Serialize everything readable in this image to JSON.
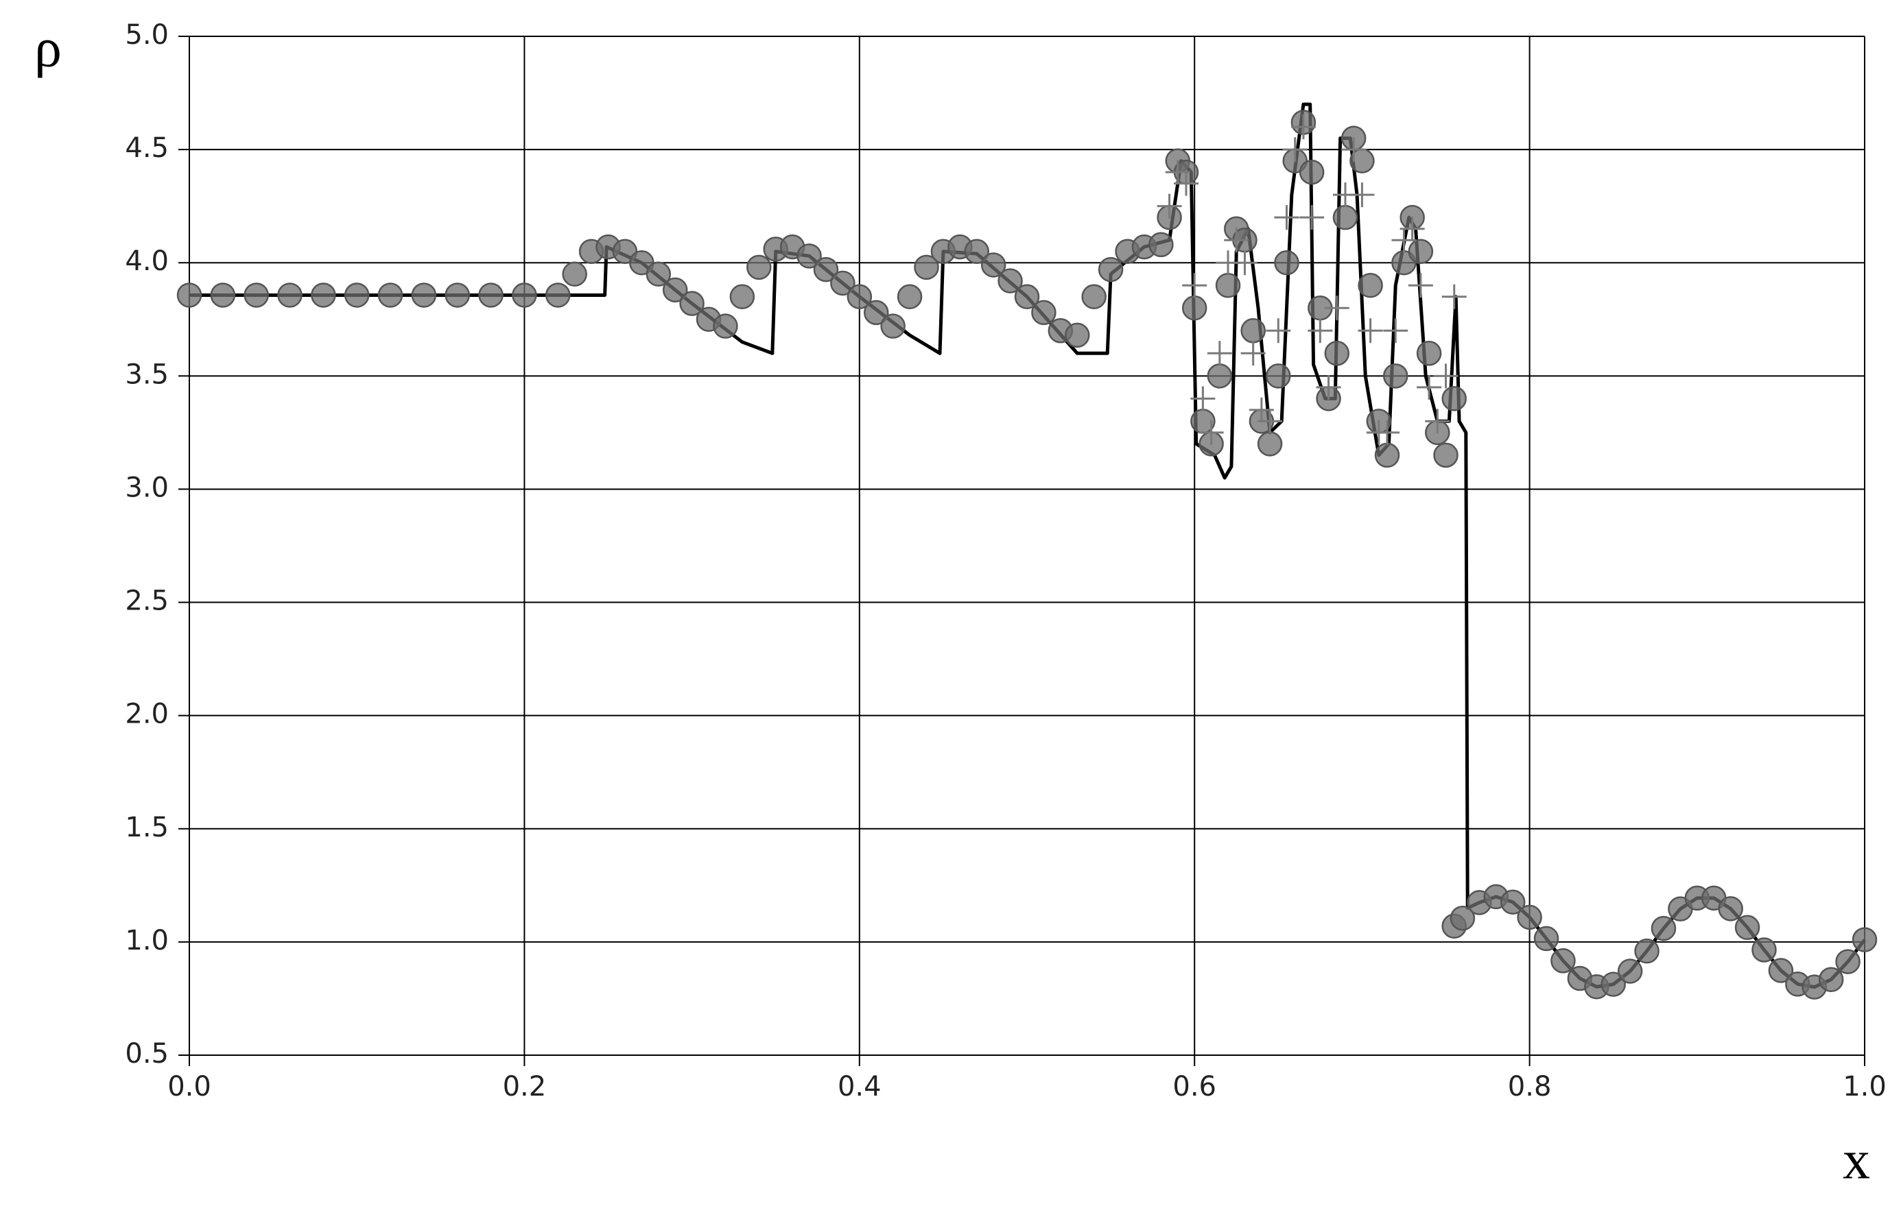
{
  "chart_data": {
    "type": "line",
    "x_label": "x",
    "y_label": "ρ",
    "xlim": [
      0,
      1
    ],
    "ylim": [
      0.5,
      5
    ],
    "xticks": [
      {
        "value": 0,
        "label": "0.0"
      },
      0.2,
      0.4,
      0.6,
      0.8,
      {
        "value": 1,
        "label": "1.0"
      }
    ],
    "yticks": [
      0.5,
      {
        "value": 1,
        "label": "1.0"
      },
      1.5,
      {
        "value": 2,
        "label": "2.0"
      },
      2.5,
      {
        "value": 3,
        "label": "3.0"
      },
      3.5,
      {
        "value": 4,
        "label": "4.0"
      },
      4.5,
      {
        "value": 5,
        "label": "5.0"
      }
    ],
    "grid": true,
    "series": [
      {
        "color": "#000000",
        "marker": "none",
        "x": [
          0,
          0.248,
          0.249,
          0.27,
          0.3,
          0.33,
          0.348,
          0.35,
          0.37,
          0.4,
          0.43,
          0.448,
          0.45,
          0.47,
          0.5,
          0.53,
          0.548,
          0.55,
          0.57,
          0.585,
          0.592,
          0.598,
          0.601,
          0.612,
          0.618,
          0.622,
          0.625,
          0.632,
          0.638,
          0.645,
          0.652,
          0.658,
          0.665,
          0.669,
          0.671,
          0.678,
          0.684,
          0.687,
          0.693,
          0.697,
          0.702,
          0.71,
          0.716,
          0.72,
          0.728,
          0.732,
          0.738,
          0.745,
          0.752,
          0.756,
          0.758,
          0.762,
          0.763,
          0.77,
          0.78,
          0.79,
          0.8,
          0.81,
          0.82,
          0.83,
          0.84,
          0.85,
          0.86,
          0.87,
          0.88,
          0.89,
          0.9,
          0.91,
          0.92,
          0.93,
          0.94,
          0.95,
          0.96,
          0.97,
          0.98,
          0.99,
          1.0
        ],
        "values": [
          3.857,
          3.857,
          4.07,
          4.0,
          3.82,
          3.65,
          3.6,
          4.05,
          4.03,
          3.85,
          3.68,
          3.6,
          4.05,
          4.04,
          3.85,
          3.6,
          3.6,
          3.95,
          4.07,
          4.1,
          4.45,
          4.4,
          3.2,
          3.15,
          3.05,
          3.1,
          4.05,
          4.15,
          3.8,
          3.25,
          3.3,
          4.3,
          4.7,
          4.7,
          3.55,
          3.4,
          3.4,
          4.55,
          4.55,
          4.3,
          3.5,
          3.15,
          3.2,
          3.9,
          4.2,
          4.15,
          3.5,
          3.3,
          3.3,
          3.85,
          3.3,
          3.25,
          1.15,
          1.174,
          1.2,
          1.176,
          1.109,
          1.015,
          0.917,
          0.839,
          0.802,
          0.813,
          0.871,
          0.96,
          1.06,
          1.146,
          1.194,
          1.194,
          1.147,
          1.064,
          0.965,
          0.874,
          0.814,
          0.801,
          0.834,
          0.913,
          1.01
        ]
      },
      {
        "color": "#6e6e6e",
        "marker": "circle",
        "x": [
          0,
          0.02,
          0.04,
          0.06,
          0.08,
          0.1,
          0.12,
          0.14,
          0.16,
          0.18,
          0.2,
          0.22,
          0.23,
          0.24,
          0.25,
          0.26,
          0.27,
          0.28,
          0.29,
          0.3,
          0.31,
          0.32,
          0.33,
          0.34,
          0.35,
          0.36,
          0.37,
          0.38,
          0.39,
          0.4,
          0.41,
          0.42,
          0.43,
          0.44,
          0.45,
          0.46,
          0.47,
          0.48,
          0.49,
          0.5,
          0.51,
          0.52,
          0.53,
          0.54,
          0.55,
          0.56,
          0.57,
          0.58,
          0.585,
          0.59,
          0.595,
          0.6,
          0.605,
          0.61,
          0.615,
          0.62,
          0.625,
          0.63,
          0.635,
          0.64,
          0.645,
          0.65,
          0.655,
          0.66,
          0.665,
          0.67,
          0.675,
          0.68,
          0.685,
          0.69,
          0.695,
          0.7,
          0.705,
          0.71,
          0.715,
          0.72,
          0.725,
          0.73,
          0.735,
          0.74,
          0.745,
          0.75,
          0.755,
          0.755,
          0.76,
          0.77,
          0.78,
          0.79,
          0.8,
          0.81,
          0.82,
          0.83,
          0.84,
          0.85,
          0.86,
          0.87,
          0.88,
          0.89,
          0.9,
          0.91,
          0.92,
          0.93,
          0.94,
          0.95,
          0.96,
          0.97,
          0.98,
          0.99,
          1.0
        ],
        "values": [
          3.857,
          3.857,
          3.857,
          3.857,
          3.857,
          3.857,
          3.857,
          3.857,
          3.857,
          3.857,
          3.857,
          3.857,
          3.95,
          4.05,
          4.07,
          4.05,
          4.0,
          3.95,
          3.88,
          3.82,
          3.75,
          3.72,
          3.85,
          3.98,
          4.06,
          4.07,
          4.03,
          3.97,
          3.91,
          3.85,
          3.78,
          3.72,
          3.85,
          3.98,
          4.05,
          4.07,
          4.05,
          3.99,
          3.92,
          3.85,
          3.78,
          3.7,
          3.68,
          3.85,
          3.97,
          4.05,
          4.07,
          4.08,
          4.2,
          4.45,
          4.4,
          3.8,
          3.3,
          3.2,
          3.5,
          3.9,
          4.15,
          4.1,
          3.7,
          3.3,
          3.2,
          3.5,
          4.0,
          4.45,
          4.62,
          4.4,
          3.8,
          3.4,
          3.6,
          4.2,
          4.55,
          4.45,
          3.9,
          3.3,
          3.15,
          3.5,
          4.0,
          4.2,
          4.05,
          3.6,
          3.25,
          3.15,
          3.4,
          1.07,
          1.105,
          1.174,
          1.2,
          1.176,
          1.109,
          1.015,
          0.917,
          0.839,
          0.802,
          0.813,
          0.871,
          0.96,
          1.06,
          1.146,
          1.194,
          1.194,
          1.147,
          1.064,
          0.965,
          0.874,
          0.814,
          0.801,
          0.834,
          0.913,
          1.01
        ]
      },
      {
        "color": "#7a7a7a",
        "marker": "plus",
        "x": [
          0.585,
          0.59,
          0.595,
          0.6,
          0.605,
          0.61,
          0.615,
          0.62,
          0.625,
          0.63,
          0.635,
          0.64,
          0.645,
          0.65,
          0.655,
          0.66,
          0.665,
          0.67,
          0.675,
          0.68,
          0.685,
          0.69,
          0.695,
          0.7,
          0.705,
          0.71,
          0.715,
          0.72,
          0.725,
          0.73,
          0.735,
          0.74,
          0.745,
          0.75,
          0.755
        ],
        "values": [
          4.25,
          4.4,
          4.35,
          3.9,
          3.4,
          3.25,
          3.6,
          4.0,
          4.1,
          4.0,
          3.6,
          3.35,
          3.3,
          3.7,
          4.2,
          4.5,
          4.6,
          4.2,
          3.7,
          3.45,
          3.8,
          4.3,
          4.5,
          4.3,
          3.7,
          3.25,
          3.25,
          3.7,
          4.1,
          4.15,
          3.9,
          3.45,
          3.3,
          3.5,
          3.85
        ]
      }
    ]
  }
}
